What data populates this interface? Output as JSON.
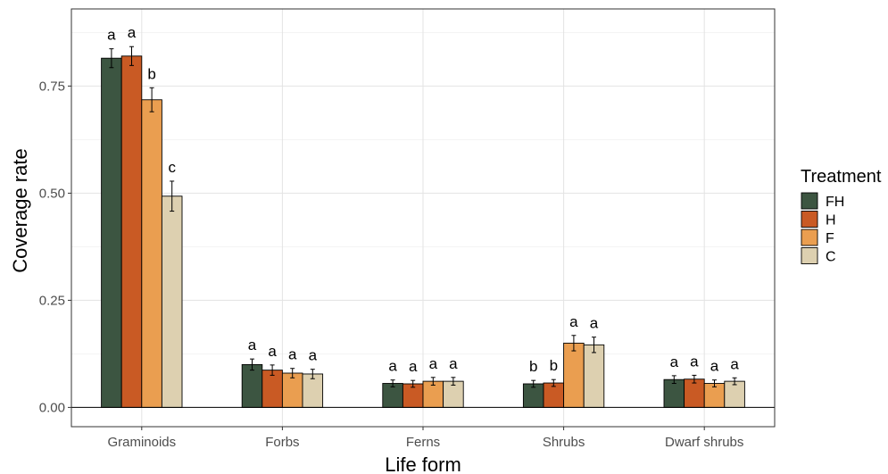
{
  "chart_data": {
    "type": "bar",
    "xlabel": "Life form",
    "ylabel": "Coverage rate",
    "ylim": [
      -0.045,
      0.93
    ],
    "yticks": [
      0.0,
      0.25,
      0.5,
      0.75
    ],
    "ytick_labels": [
      "0.00",
      "0.25",
      "0.50",
      "0.75"
    ],
    "grid": true,
    "legend_position": "right",
    "legend_title": "Treatment",
    "categories": [
      "Graminoids",
      "Forbs",
      "Ferns",
      "Shrubs",
      "Dwarf shrubs"
    ],
    "series": [
      {
        "name": "FH",
        "color": "#3c5541",
        "values": [
          0.815,
          0.1,
          0.056,
          0.055,
          0.065
        ],
        "errors": [
          0.022,
          0.013,
          0.008,
          0.008,
          0.009
        ],
        "letters": [
          "a",
          "a",
          "a",
          "b",
          "a"
        ]
      },
      {
        "name": "H",
        "color": "#c95a24",
        "values": [
          0.82,
          0.087,
          0.055,
          0.057,
          0.066
        ],
        "errors": [
          0.022,
          0.012,
          0.008,
          0.008,
          0.009
        ],
        "letters": [
          "a",
          "a",
          "a",
          "b",
          "a"
        ]
      },
      {
        "name": "F",
        "color": "#ea9e50",
        "values": [
          0.718,
          0.08,
          0.061,
          0.15,
          0.056
        ],
        "errors": [
          0.028,
          0.011,
          0.009,
          0.018,
          0.008
        ],
        "letters": [
          "b",
          "a",
          "a",
          "a",
          "a"
        ]
      },
      {
        "name": "C",
        "color": "#ddd0b0",
        "values": [
          0.493,
          0.078,
          0.061,
          0.146,
          0.061
        ],
        "errors": [
          0.035,
          0.011,
          0.009,
          0.018,
          0.008
        ],
        "letters": [
          "c",
          "a",
          "a",
          "a",
          "a"
        ]
      }
    ]
  }
}
